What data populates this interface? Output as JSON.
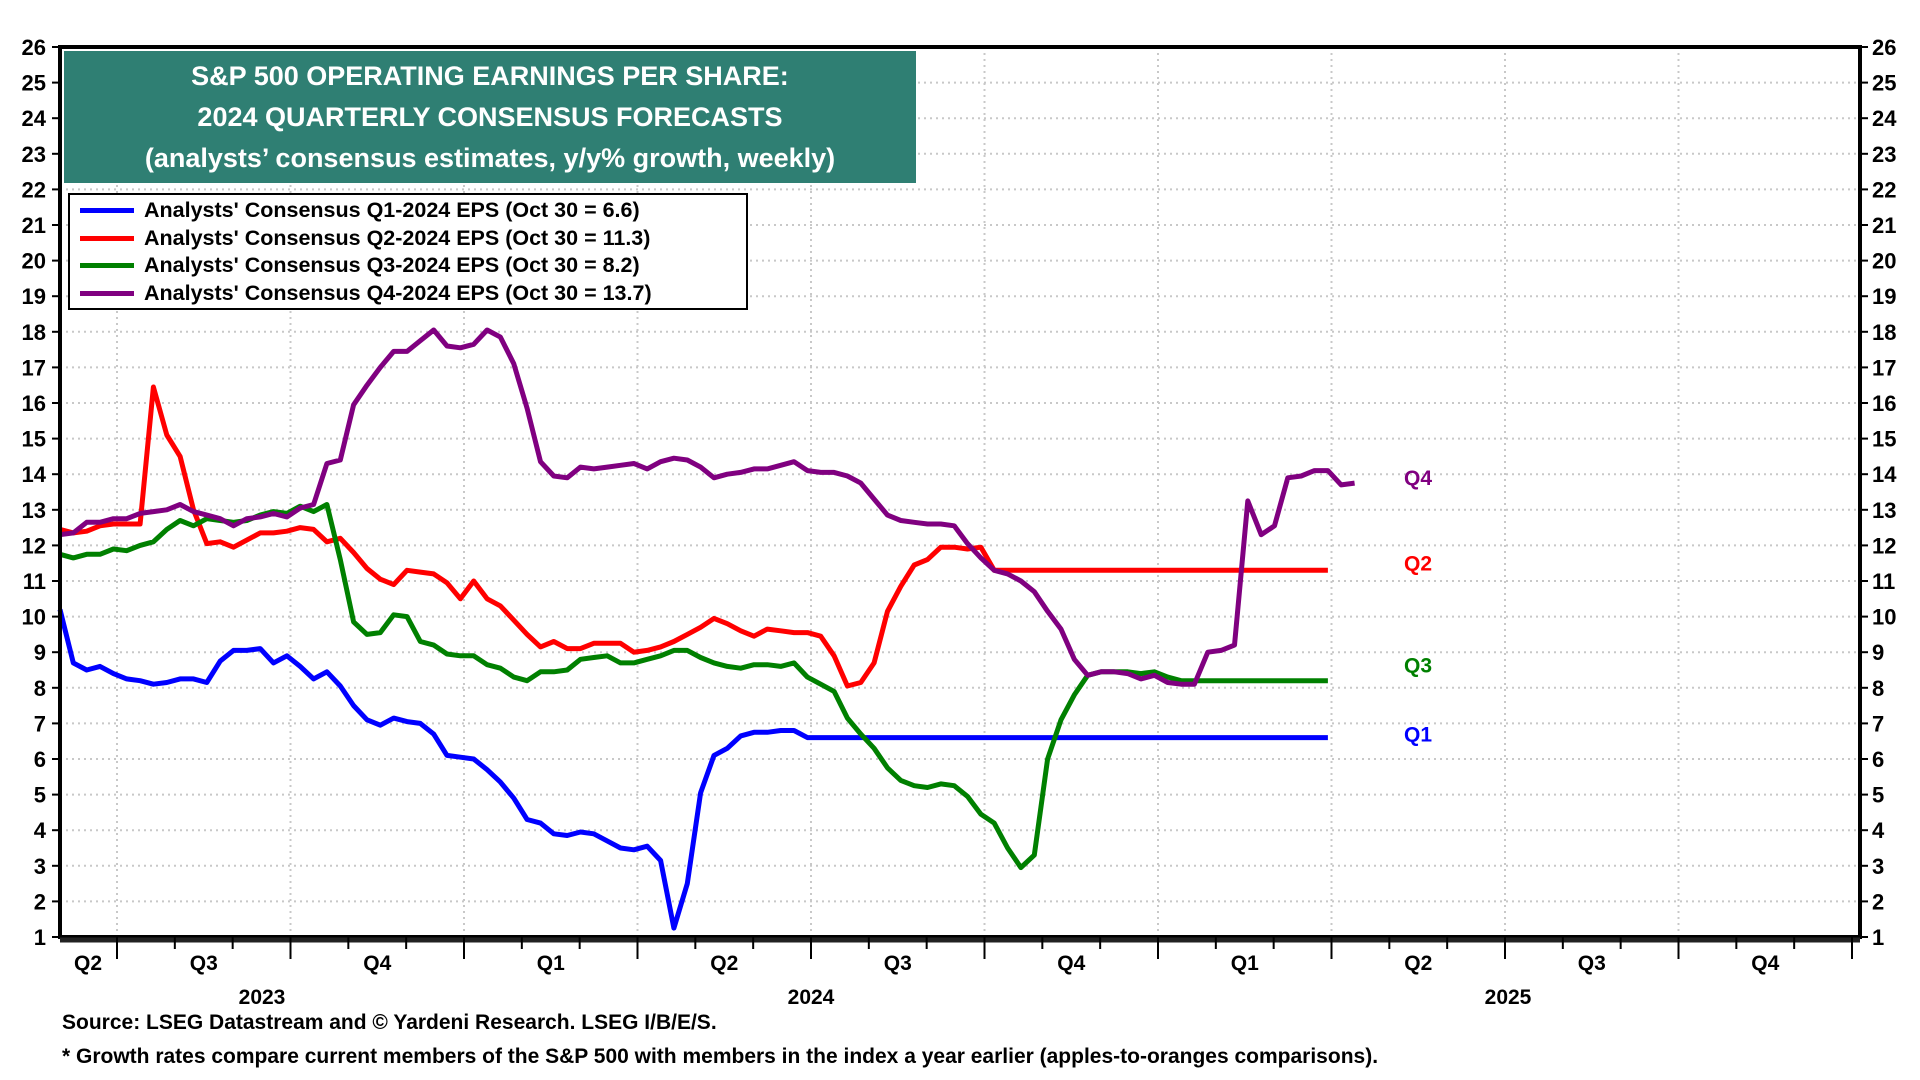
{
  "chart_data": {
    "type": "line",
    "title": "S&P 500 OPERATING EARNINGS PER SHARE:",
    "subtitle": "2024 QUARTERLY CONSENSUS FORECASTS",
    "subtitle2": "(analysts’ consensus estimates, y/y% growth, weekly)",
    "ylim": [
      1,
      26
    ],
    "yticks": [
      1,
      2,
      3,
      4,
      5,
      6,
      7,
      8,
      9,
      10,
      11,
      12,
      13,
      14,
      15,
      16,
      17,
      18,
      19,
      20,
      21,
      22,
      23,
      24,
      25,
      26
    ],
    "x_quarter_labels": [
      "Q2",
      "Q3",
      "Q4",
      "Q1",
      "Q2",
      "Q3",
      "Q4",
      "Q1",
      "Q2",
      "Q3",
      "Q4"
    ],
    "x_year_labels": [
      "2023",
      "2024",
      "2025"
    ],
    "x_range": "mid-May 2023 to end of 2025 (weekly)",
    "grid": true,
    "legend_position": "top-left",
    "series": [
      {
        "name": "Analysts' Consensus Q1-2024 EPS (Oct 30 = 6.6)",
        "short": "Q1",
        "color": "#0000ff",
        "values": [
          10.2,
          8.7,
          8.5,
          8.6,
          8.4,
          8.25,
          8.2,
          8.1,
          8.15,
          8.25,
          8.25,
          8.15,
          8.75,
          9.05,
          9.05,
          9.1,
          8.7,
          8.9,
          8.6,
          8.25,
          8.45,
          8.05,
          7.5,
          7.1,
          6.95,
          7.15,
          7.05,
          7.0,
          6.7,
          6.1,
          6.05,
          6.0,
          5.7,
          5.35,
          4.9,
          4.3,
          4.2,
          3.9,
          3.85,
          3.95,
          3.9,
          3.7,
          3.5,
          3.45,
          3.55,
          3.15,
          1.25,
          2.5,
          5.05,
          6.1,
          6.3,
          6.65,
          6.75,
          6.75,
          6.8,
          6.8,
          6.6,
          6.6,
          6.6,
          6.6,
          6.6,
          6.6,
          6.6,
          6.6,
          6.6,
          6.6,
          6.6,
          6.6,
          6.6,
          6.6,
          6.6,
          6.6,
          6.6,
          6.6,
          6.6,
          6.6,
          6.6,
          6.6,
          6.6,
          6.6,
          6.6,
          6.6,
          6.6,
          6.6,
          6.6,
          6.6,
          6.6,
          6.6,
          6.6,
          6.6,
          6.6,
          6.6,
          6.6,
          6.6,
          6.6,
          6.6
        ]
      },
      {
        "name": "Analysts' Consensus Q2-2024 EPS (Oct 30 = 11.3)",
        "short": "Q2",
        "color": "#ff0000",
        "values": [
          12.45,
          12.35,
          12.4,
          12.55,
          12.6,
          12.6,
          12.6,
          16.45,
          15.1,
          14.5,
          13.0,
          12.05,
          12.1,
          11.95,
          12.15,
          12.35,
          12.35,
          12.4,
          12.5,
          12.45,
          12.1,
          12.2,
          11.8,
          11.35,
          11.05,
          10.9,
          11.3,
          11.25,
          11.2,
          10.95,
          10.5,
          11.0,
          10.5,
          10.3,
          9.9,
          9.5,
          9.15,
          9.3,
          9.1,
          9.1,
          9.25,
          9.25,
          9.25,
          9.0,
          9.05,
          9.15,
          9.3,
          9.5,
          9.7,
          9.95,
          9.8,
          9.6,
          9.45,
          9.65,
          9.6,
          9.55,
          9.55,
          9.45,
          8.9,
          8.05,
          8.15,
          8.7,
          10.15,
          10.85,
          11.45,
          11.6,
          11.95,
          11.95,
          11.9,
          11.95,
          11.3,
          11.3,
          11.3,
          11.3,
          11.3,
          11.3,
          11.3,
          11.3,
          11.3,
          11.3,
          11.3,
          11.3,
          11.3,
          11.3,
          11.3,
          11.3,
          11.3,
          11.3,
          11.3,
          11.3,
          11.3,
          11.3,
          11.3,
          11.3,
          11.3,
          11.3
        ]
      },
      {
        "name": "Analysts' Consensus Q3-2024 EPS (Oct 30 = 8.2)",
        "short": "Q3",
        "color": "#008000",
        "values": [
          11.75,
          11.65,
          11.75,
          11.75,
          11.9,
          11.85,
          12.0,
          12.1,
          12.45,
          12.7,
          12.55,
          12.75,
          12.7,
          12.65,
          12.7,
          12.85,
          12.95,
          12.9,
          13.1,
          12.95,
          13.15,
          11.6,
          9.85,
          9.5,
          9.55,
          10.05,
          10.0,
          9.3,
          9.2,
          8.95,
          8.9,
          8.9,
          8.65,
          8.55,
          8.3,
          8.2,
          8.45,
          8.45,
          8.5,
          8.8,
          8.85,
          8.9,
          8.7,
          8.7,
          8.8,
          8.9,
          9.05,
          9.05,
          8.85,
          8.7,
          8.6,
          8.55,
          8.65,
          8.65,
          8.6,
          8.7,
          8.3,
          8.1,
          7.9,
          7.15,
          6.7,
          6.3,
          5.75,
          5.4,
          5.25,
          5.2,
          5.3,
          5.25,
          4.95,
          4.45,
          4.2,
          3.5,
          2.95,
          3.3,
          6.0,
          7.1,
          7.8,
          8.35,
          8.45,
          8.45,
          8.45,
          8.4,
          8.45,
          8.3,
          8.2,
          8.2,
          8.2,
          8.2,
          8.2,
          8.2,
          8.2,
          8.2,
          8.2,
          8.2,
          8.2,
          8.2
        ]
      },
      {
        "name": "Analysts' Consensus Q4-2024 EPS (Oct 30 = 13.7)",
        "short": "Q4",
        "color": "#800080",
        "values": [
          12.3,
          12.35,
          12.65,
          12.65,
          12.75,
          12.75,
          12.9,
          12.95,
          13.0,
          13.15,
          12.95,
          12.85,
          12.75,
          12.55,
          12.75,
          12.8,
          12.9,
          12.8,
          13.05,
          13.15,
          14.3,
          14.4,
          15.95,
          16.5,
          17.0,
          17.45,
          17.45,
          17.75,
          18.05,
          17.6,
          17.55,
          17.65,
          18.05,
          17.85,
          17.1,
          15.85,
          14.35,
          13.95,
          13.9,
          14.2,
          14.15,
          14.2,
          14.25,
          14.3,
          14.15,
          14.35,
          14.45,
          14.4,
          14.2,
          13.9,
          14.0,
          14.05,
          14.15,
          14.15,
          14.25,
          14.35,
          14.1,
          14.05,
          14.05,
          13.95,
          13.75,
          13.3,
          12.85,
          12.7,
          12.65,
          12.6,
          12.6,
          12.55,
          12.05,
          11.65,
          11.3,
          11.2,
          11.0,
          10.7,
          10.15,
          9.65,
          8.8,
          8.35,
          8.45,
          8.45,
          8.4,
          8.25,
          8.35,
          8.15,
          8.1,
          8.1,
          9.0,
          9.05,
          9.2,
          13.25,
          12.3,
          12.55,
          13.9,
          13.95,
          14.1,
          14.1,
          13.7,
          13.75
        ]
      }
    ]
  },
  "footer": {
    "source": "Source: LSEG Datastream and © Yardeni Research. LSEG I/B/E/S.",
    "note": "* Growth rates compare current members of the S&P 500 with members in the index a year earlier (apples-to-oranges comparisons)."
  }
}
